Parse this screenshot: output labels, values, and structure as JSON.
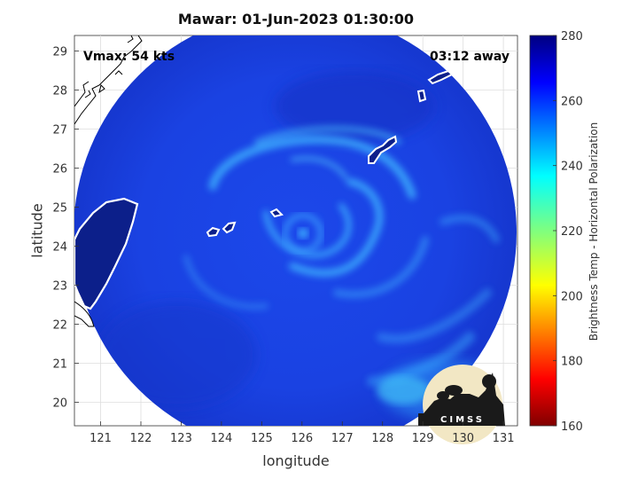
{
  "chart_data": {
    "type": "heatmap",
    "title": "Mawar: 01-Jun-2023 01:30:00",
    "xlabel": "longitude",
    "ylabel": "latitude",
    "xlim": [
      120.35,
      131.35
    ],
    "ylim": [
      19.4,
      29.4
    ],
    "xticks": [
      "121",
      "122",
      "123",
      "124",
      "125",
      "126",
      "127",
      "128",
      "129",
      "130",
      "131"
    ],
    "yticks": [
      "20",
      "21",
      "22",
      "23",
      "24",
      "25",
      "26",
      "27",
      "28",
      "29"
    ],
    "grid": true,
    "annotations": {
      "vmax": "Vmax: 54 kts",
      "time_away": "03:12 away"
    },
    "colorbar": {
      "label": "Brightness Temp - Horizontal Polarization",
      "range": [
        160,
        280
      ],
      "ticks": [
        "280",
        "260",
        "240",
        "220",
        "200",
        "180",
        "160"
      ],
      "colormap": "jet"
    },
    "storm_center": {
      "lon": 126.0,
      "lat": 24.3
    },
    "colors": {
      "background": "#1a44e6",
      "rainband": "#3fb7ff",
      "land": "#0c1f8a"
    }
  },
  "logo": {
    "text": "CIMSS"
  }
}
